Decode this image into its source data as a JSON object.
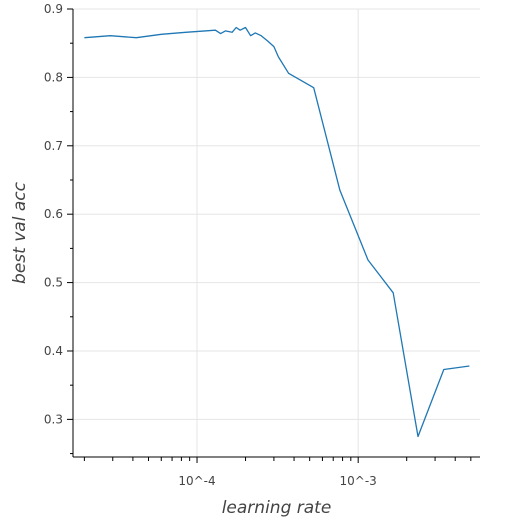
{
  "chart_data": {
    "type": "line",
    "title": "",
    "xlabel": "learning rate",
    "ylabel": "best val acc",
    "xscale": "log",
    "xlim": [
      1.7e-05,
      0.0057
    ],
    "ylim": [
      0.245,
      0.9
    ],
    "x_tick_labels": [
      {
        "value": 0.0001,
        "label": "10^-4"
      },
      {
        "value": 0.001,
        "label": "10^-3"
      }
    ],
    "y_ticks": [
      0.3,
      0.4,
      0.5,
      0.6,
      0.7,
      0.8,
      0.9
    ],
    "y_tick_labels": [
      "0.3",
      "0.4",
      "0.5",
      "0.6",
      "0.7",
      "0.8",
      "0.9"
    ],
    "grid": true,
    "colors": {
      "line": "#1f77b4",
      "grid": "#e5e5e5",
      "axis": "#000000"
    },
    "series": [
      {
        "x": [
          2e-05,
          2.9e-05,
          4.2e-05,
          6e-05,
          8.5e-05,
          0.00013,
          0.00014,
          0.00015,
          0.000165,
          0.000175,
          0.000185,
          0.0002,
          0.000215,
          0.00023,
          0.00025,
          0.000275,
          0.0003,
          0.00032,
          0.00037,
          0.00053,
          0.00077,
          0.00115,
          0.00165,
          0.00235,
          0.0034,
          0.0049
        ],
        "y": [
          0.858,
          0.861,
          0.858,
          0.863,
          0.866,
          0.869,
          0.864,
          0.868,
          0.866,
          0.873,
          0.869,
          0.873,
          0.861,
          0.865,
          0.861,
          0.853,
          0.845,
          0.83,
          0.806,
          0.785,
          0.635,
          0.533,
          0.485,
          0.275,
          0.373,
          0.378
        ]
      }
    ]
  }
}
